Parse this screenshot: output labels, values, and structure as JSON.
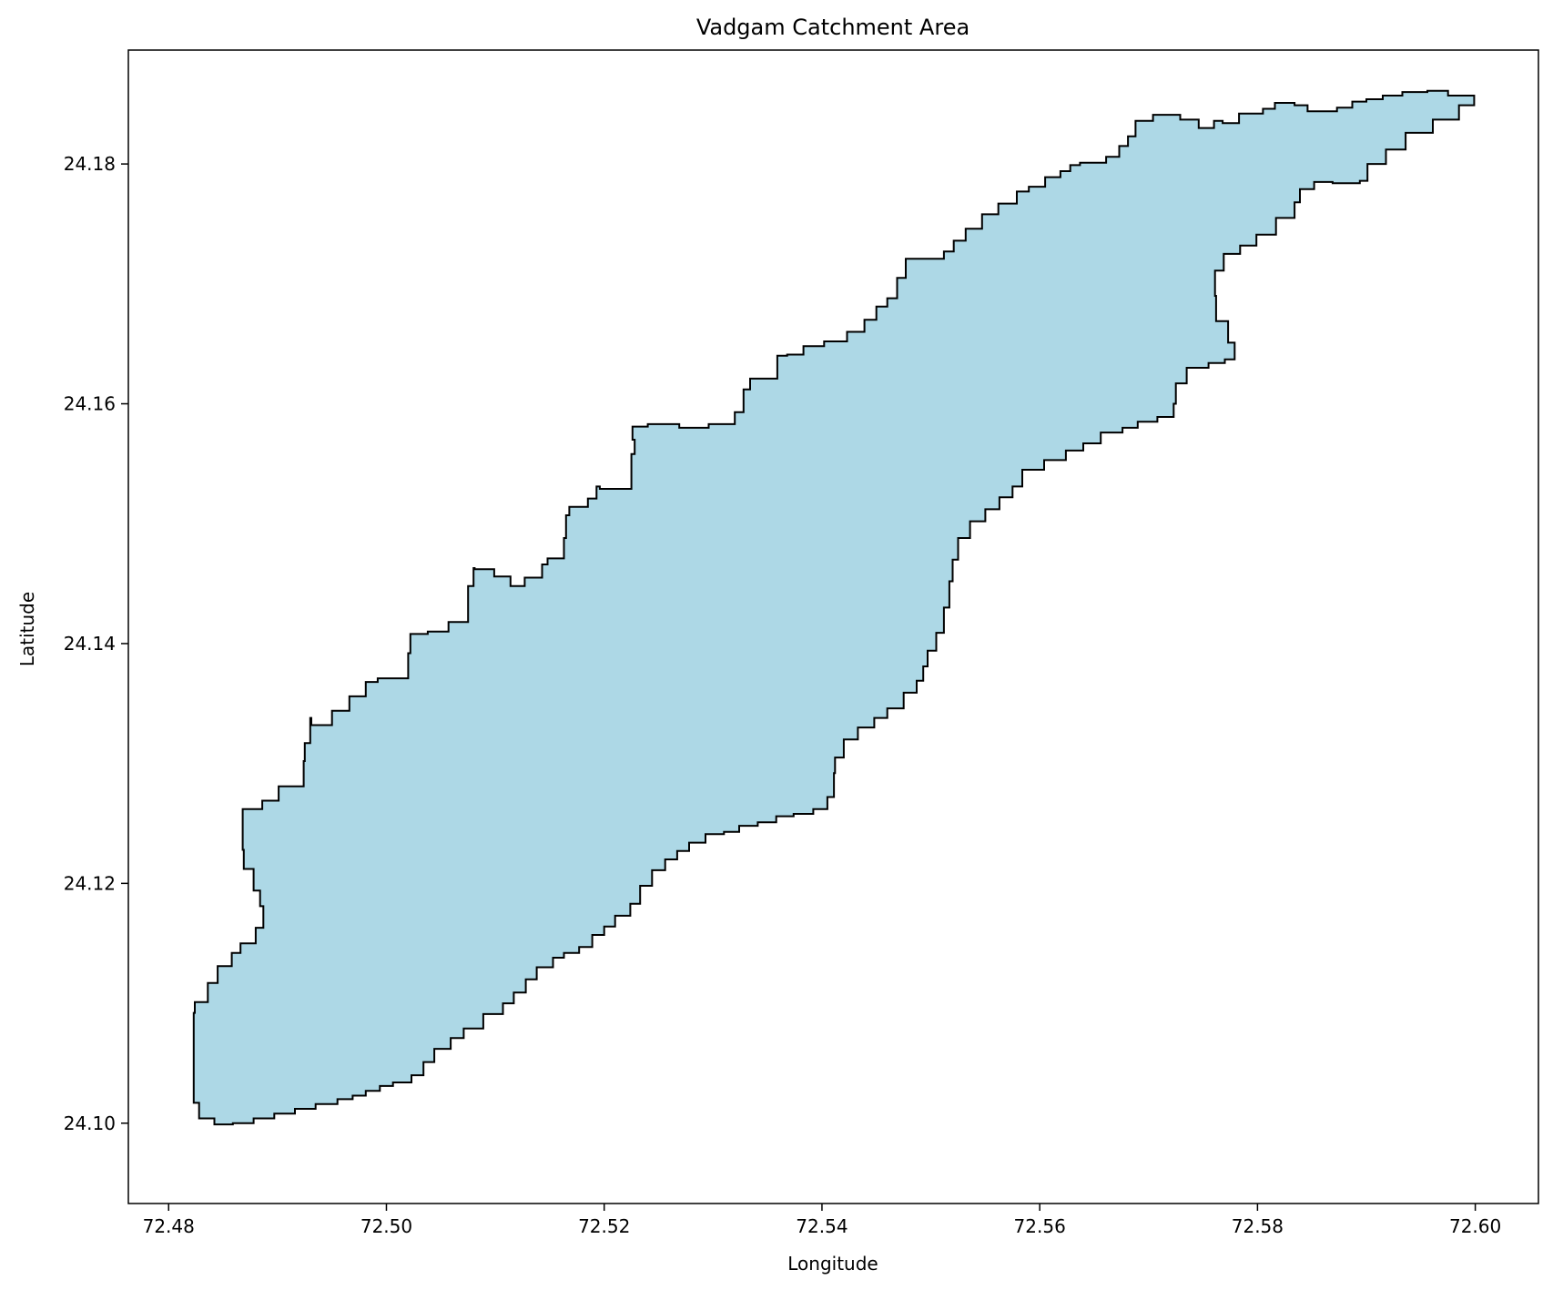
{
  "chart_data": {
    "type": "map",
    "title": "Vadgam Catchment Area",
    "xlabel": "Longitude",
    "ylabel": "Latitude",
    "xlim": [
      72.4763,
      72.6058
    ],
    "ylim": [
      24.0933,
      24.1895
    ],
    "x_ticks": [
      {
        "value": 72.48,
        "label": "72.48"
      },
      {
        "value": 72.5,
        "label": "72.50"
      },
      {
        "value": 72.52,
        "label": "72.52"
      },
      {
        "value": 72.54,
        "label": "72.54"
      },
      {
        "value": 72.56,
        "label": "72.56"
      },
      {
        "value": 72.58,
        "label": "72.58"
      },
      {
        "value": 72.6,
        "label": "72.60"
      }
    ],
    "y_ticks": [
      {
        "value": 24.1,
        "label": "24.10"
      },
      {
        "value": 24.12,
        "label": "24.12"
      },
      {
        "value": 24.14,
        "label": "24.14"
      },
      {
        "value": 24.16,
        "label": "24.16"
      },
      {
        "value": 24.18,
        "label": "24.18"
      }
    ],
    "fill_color": "#add8e6",
    "edge_color": "#000000",
    "grid": false,
    "boundary": [
      [
        72.4823,
        24.1077
      ],
      [
        72.4824,
        24.1092
      ],
      [
        72.4836,
        24.1101
      ],
      [
        72.4845,
        24.1117
      ],
      [
        72.4858,
        24.1131
      ],
      [
        72.4866,
        24.1142
      ],
      [
        72.488,
        24.115
      ],
      [
        72.4887,
        24.1163
      ],
      [
        72.4884,
        24.1181
      ],
      [
        72.4878,
        24.1194
      ],
      [
        72.4869,
        24.1212
      ],
      [
        72.4868,
        24.1228
      ],
      [
        72.4868,
        24.1251
      ],
      [
        72.4886,
        24.1262
      ],
      [
        72.4901,
        24.1269
      ],
      [
        72.4924,
        24.1281
      ],
      [
        72.4925,
        24.1302
      ],
      [
        72.493,
        24.1317
      ],
      [
        72.4931,
        24.1338
      ],
      [
        72.495,
        24.1332
      ],
      [
        72.4966,
        24.1344
      ],
      [
        72.4981,
        24.1356
      ],
      [
        72.4992,
        24.1368
      ],
      [
        72.502,
        24.1371
      ],
      [
        72.5022,
        24.1392
      ],
      [
        72.5038,
        24.1408
      ],
      [
        72.5057,
        24.141
      ],
      [
        72.5075,
        24.1418
      ],
      [
        72.508,
        24.1448
      ],
      [
        72.5081,
        24.1463
      ],
      [
        72.5099,
        24.1462
      ],
      [
        72.5114,
        24.1456
      ],
      [
        72.5127,
        24.1448
      ],
      [
        72.5143,
        24.1455
      ],
      [
        72.5148,
        24.1466
      ],
      [
        72.5163,
        24.1471
      ],
      [
        72.5165,
        24.1488
      ],
      [
        72.5168,
        24.1507
      ],
      [
        72.5185,
        24.1514
      ],
      [
        72.5193,
        24.1521
      ],
      [
        72.5196,
        24.1531
      ],
      [
        72.5225,
        24.1529
      ],
      [
        72.5228,
        24.1558
      ],
      [
        72.5226,
        24.157
      ],
      [
        72.524,
        24.1581
      ],
      [
        72.5269,
        24.1583
      ],
      [
        72.5296,
        24.158
      ],
      [
        72.532,
        24.1583
      ],
      [
        72.5328,
        24.1593
      ],
      [
        72.5334,
        24.1612
      ],
      [
        72.5359,
        24.1621
      ],
      [
        72.5368,
        24.164
      ],
      [
        72.5383,
        24.1641
      ],
      [
        72.5402,
        24.1648
      ],
      [
        72.5423,
        24.1652
      ],
      [
        72.5439,
        24.166
      ],
      [
        72.545,
        24.167
      ],
      [
        72.546,
        24.1681
      ],
      [
        72.5469,
        24.1688
      ],
      [
        72.5477,
        24.1705
      ],
      [
        72.5486,
        24.1721
      ],
      [
        72.5503,
        24.1721
      ],
      [
        72.5512,
        24.1721
      ],
      [
        72.5521,
        24.1727
      ],
      [
        72.5532,
        24.1736
      ],
      [
        72.5547,
        24.1746
      ],
      [
        72.5562,
        24.1758
      ],
      [
        72.5579,
        24.1767
      ],
      [
        72.559,
        24.1777
      ],
      [
        72.5605,
        24.1781
      ],
      [
        72.5619,
        24.1789
      ],
      [
        72.5628,
        24.1794
      ],
      [
        72.5637,
        24.1799
      ],
      [
        72.5661,
        24.1801
      ],
      [
        72.5673,
        24.1806
      ],
      [
        72.5681,
        24.1815
      ],
      [
        72.5688,
        24.1823
      ],
      [
        72.5704,
        24.1836
      ],
      [
        72.5718,
        24.1841
      ],
      [
        72.5729,
        24.1841
      ],
      [
        72.5746,
        24.1837
      ],
      [
        72.576,
        24.183
      ],
      [
        72.5768,
        24.1836
      ],
      [
        72.5783,
        24.1834
      ],
      [
        72.5805,
        24.1842
      ],
      [
        72.5816,
        24.1846
      ],
      [
        72.5822,
        24.1851
      ],
      [
        72.5834,
        24.1851
      ],
      [
        72.5846,
        24.1849
      ],
      [
        72.5859,
        24.1844
      ],
      [
        72.5873,
        24.1844
      ],
      [
        72.5887,
        24.1847
      ],
      [
        72.59,
        24.1852
      ],
      [
        72.5915,
        24.1854
      ],
      [
        72.5933,
        24.1857
      ],
      [
        72.5956,
        24.186
      ],
      [
        72.5975,
        24.1861
      ],
      [
        72.5999,
        24.1857
      ],
      [
        72.5985,
        24.1849
      ],
      [
        72.5961,
        24.1837
      ],
      [
        72.5936,
        24.1826
      ],
      [
        72.5918,
        24.1812
      ],
      [
        72.5901,
        24.18
      ],
      [
        72.5894,
        24.1786
      ],
      [
        72.5869,
        24.1784
      ],
      [
        72.5852,
        24.1785
      ],
      [
        72.5839,
        24.1779
      ],
      [
        72.5834,
        24.1768
      ],
      [
        72.5817,
        24.1755
      ],
      [
        72.5799,
        24.1741
      ],
      [
        72.5784,
        24.1732
      ],
      [
        72.5769,
        24.1725
      ],
      [
        72.5761,
        24.1711
      ],
      [
        72.5762,
        24.169
      ],
      [
        72.5773,
        24.1669
      ],
      [
        72.5779,
        24.1651
      ],
      [
        72.577,
        24.1637
      ],
      [
        72.5755,
        24.1634
      ],
      [
        72.5735,
        24.163
      ],
      [
        72.5725,
        24.1617
      ],
      [
        72.5723,
        24.16
      ],
      [
        72.5708,
        24.1589
      ],
      [
        72.569,
        24.1585
      ],
      [
        72.5676,
        24.158
      ],
      [
        72.5656,
        24.1576
      ],
      [
        72.564,
        24.1567
      ],
      [
        72.5624,
        24.1561
      ],
      [
        72.5604,
        24.1553
      ],
      [
        72.5584,
        24.1545
      ],
      [
        72.5575,
        24.1531
      ],
      [
        72.5563,
        24.1522
      ],
      [
        72.555,
        24.1512
      ],
      [
        72.5536,
        24.1502
      ],
      [
        72.5525,
        24.1488
      ],
      [
        72.552,
        24.147
      ],
      [
        72.5517,
        24.1452
      ],
      [
        72.5512,
        24.143
      ],
      [
        72.5505,
        24.1409
      ],
      [
        72.5497,
        24.1394
      ],
      [
        72.5493,
        24.1381
      ],
      [
        72.5487,
        24.1369
      ],
      [
        72.5475,
        24.1359
      ],
      [
        72.546,
        24.1346
      ],
      [
        72.5448,
        24.1338
      ],
      [
        72.5433,
        24.133
      ],
      [
        72.542,
        24.132
      ],
      [
        72.5412,
        24.1305
      ],
      [
        72.5411,
        24.1292
      ],
      [
        72.5405,
        24.1272
      ],
      [
        72.5392,
        24.1262
      ],
      [
        72.5374,
        24.1258
      ],
      [
        72.5358,
        24.1256
      ],
      [
        72.5341,
        24.1251
      ],
      [
        72.5324,
        24.1248
      ],
      [
        72.531,
        24.1243
      ],
      [
        72.5293,
        24.1241
      ],
      [
        72.5278,
        24.1234
      ],
      [
        72.5267,
        24.1227
      ],
      [
        72.5256,
        24.122
      ],
      [
        72.5244,
        24.1211
      ],
      [
        72.5233,
        24.1198
      ],
      [
        72.5224,
        24.1183
      ],
      [
        72.521,
        24.1173
      ],
      [
        72.52,
        24.1164
      ],
      [
        72.5189,
        24.1157
      ],
      [
        72.5177,
        24.1147
      ],
      [
        72.5163,
        24.1142
      ],
      [
        72.5153,
        24.1138
      ],
      [
        72.5138,
        24.113
      ],
      [
        72.5128,
        24.112
      ],
      [
        72.5117,
        24.1109
      ],
      [
        72.5107,
        24.11
      ],
      [
        72.5089,
        24.1091
      ],
      [
        72.5071,
        24.1079
      ],
      [
        72.5059,
        24.1071
      ],
      [
        72.5044,
        24.1062
      ],
      [
        72.5034,
        24.1051
      ],
      [
        72.5023,
        24.104
      ],
      [
        72.5006,
        24.1034
      ],
      [
        72.4994,
        24.1031
      ],
      [
        72.4981,
        24.1027
      ],
      [
        72.4969,
        24.1023
      ],
      [
        72.4955,
        24.102
      ],
      [
        72.4935,
        24.1016
      ],
      [
        72.4916,
        24.1012
      ],
      [
        72.4897,
        24.1008
      ],
      [
        72.4878,
        24.1004
      ],
      [
        72.4859,
        24.1
      ],
      [
        72.4842,
        24.0999
      ],
      [
        72.4828,
        24.1004
      ],
      [
        72.4823,
        24.1017
      ],
      [
        72.4823,
        24.1033
      ],
      [
        72.4823,
        24.105
      ],
      [
        72.4823,
        24.1065
      ]
    ]
  }
}
